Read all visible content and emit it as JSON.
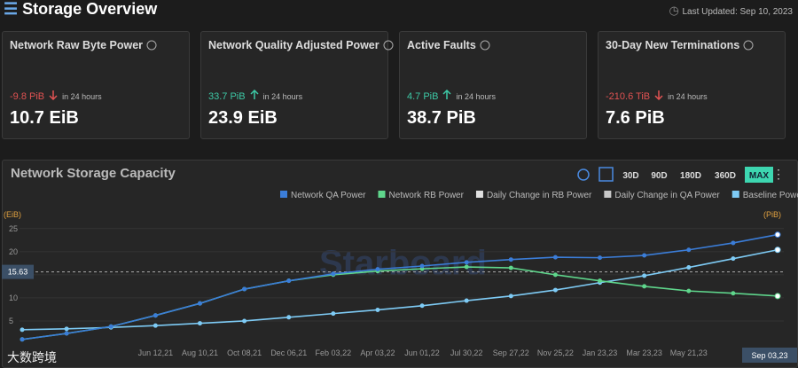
{
  "header": {
    "title": "Storage Overview",
    "updated": "Last Updated: Sep 10, 2023"
  },
  "cards": [
    {
      "title": "Network Raw Byte Power",
      "change": "-9.8 PiB",
      "trend": "down",
      "period": "in 24 hours",
      "value": "10.7 EiB"
    },
    {
      "title": "Network Quality Adjusted Power",
      "change": "33.7 PiB",
      "trend": "up",
      "period": "in 24 hours",
      "value": "23.9 EiB"
    },
    {
      "title": "Active Faults",
      "change": "4.7 PiB",
      "trend": "up",
      "period": "in 24 hours",
      "value": "38.7 PiB"
    },
    {
      "title": "30-Day New Terminations",
      "change": "-210.6 TiB",
      "trend": "down",
      "period": "in 24 hours",
      "value": "7.6 PiB"
    }
  ],
  "ranges": [
    "30D",
    "90D",
    "180D",
    "360D",
    "MAX"
  ],
  "watermark": "Starboard",
  "corner_mark": "大数跨境",
  "chart_data": {
    "type": "line",
    "title": "Network Storage Capacity",
    "y_label": "(EiB)",
    "y2_label": "(PiB)",
    "categories": [
      null,
      null,
      null,
      "Jun 12,21",
      "Aug 10,21",
      "Oct 08,21",
      "Dec 06,21",
      "Feb 03,22",
      "Apr 03,22",
      "Jun 01,22",
      "Jul 30,22",
      "Sep 27,22",
      "Nov 25,22",
      "Jan 23,23",
      "Mar 23,23",
      "May 21,23",
      null,
      "Sep 03,23"
    ],
    "series": [
      {
        "name": "Network QA Power",
        "color": "#3b7dd8",
        "values": [
          1.0,
          2.3,
          3.8,
          6.2,
          8.8,
          11.9,
          13.7,
          15.2,
          16.2,
          16.9,
          17.7,
          18.3,
          18.8,
          18.7,
          19.2,
          20.4,
          21.9,
          23.7
        ]
      },
      {
        "name": "Network RB Power",
        "color": "#5fd68c",
        "values": [
          1.0,
          2.3,
          3.8,
          6.2,
          8.8,
          11.9,
          13.7,
          15.0,
          15.8,
          16.3,
          16.7,
          16.5,
          15.0,
          13.7,
          12.5,
          11.5,
          11.0,
          10.4
        ]
      },
      {
        "name": "Daily Change in RB Power",
        "color": "#e0e0e0"
      },
      {
        "name": "Daily Change in QA Power",
        "color": "#c8c8c8"
      },
      {
        "name": "Baseline Power",
        "color": "#7ecbf5",
        "values": [
          3.1,
          3.3,
          3.6,
          4.0,
          4.5,
          5.0,
          5.8,
          6.6,
          7.4,
          8.3,
          9.4,
          10.4,
          11.7,
          13.3,
          14.8,
          16.6,
          18.5,
          20.4
        ]
      }
    ],
    "ylim": [
      0,
      26.5
    ],
    "yticks": [
      5,
      10,
      15,
      20,
      25
    ],
    "crosshair": 15.63
  }
}
